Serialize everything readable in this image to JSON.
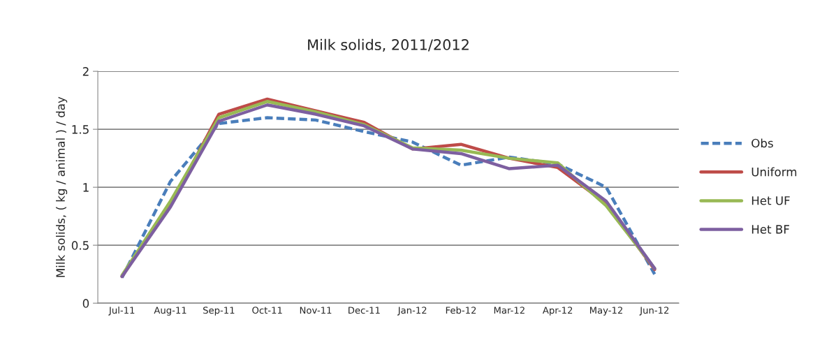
{
  "chart_data": {
    "type": "line",
    "title": "Milk solids, 2011/2012",
    "ylabel": "Milk solids, ( kg / animal ) / day",
    "categories": [
      "Jul-11",
      "Aug-11",
      "Sep-11",
      "Oct-11",
      "Nov-11",
      "Dec-11",
      "Jan-12",
      "Feb-12",
      "Mar-12",
      "Apr-12",
      "May-12",
      "Jun-12"
    ],
    "series": [
      {
        "name": "Obs",
        "color": "#4a7ebb",
        "line_style": "dashed",
        "values": [
          0.22,
          1.05,
          1.55,
          1.6,
          1.58,
          1.48,
          1.39,
          1.19,
          1.26,
          1.2,
          1.0,
          0.25
        ]
      },
      {
        "name": "Uniform",
        "color": "#be4b48",
        "values": [
          0.23,
          0.85,
          1.63,
          1.76,
          1.66,
          1.56,
          1.33,
          1.37,
          1.25,
          1.17,
          0.86,
          0.29
        ]
      },
      {
        "name": "Het UF",
        "color": "#98b954",
        "values": [
          0.24,
          0.88,
          1.6,
          1.74,
          1.65,
          1.54,
          1.34,
          1.32,
          1.25,
          1.21,
          0.84,
          0.3
        ]
      },
      {
        "name": "Het BF",
        "color": "#7d5fa0",
        "values": [
          0.23,
          0.83,
          1.57,
          1.71,
          1.63,
          1.53,
          1.33,
          1.29,
          1.16,
          1.19,
          0.88,
          0.3
        ]
      }
    ],
    "ylim": [
      0,
      2
    ],
    "yticks": [
      0,
      {
        "value": 0.5,
        "label": "0.5"
      },
      1,
      {
        "value": 1.5,
        "label": "1.5"
      },
      2
    ],
    "grid": "y",
    "legend": "right",
    "line_style": "solid",
    "marker": "none"
  }
}
